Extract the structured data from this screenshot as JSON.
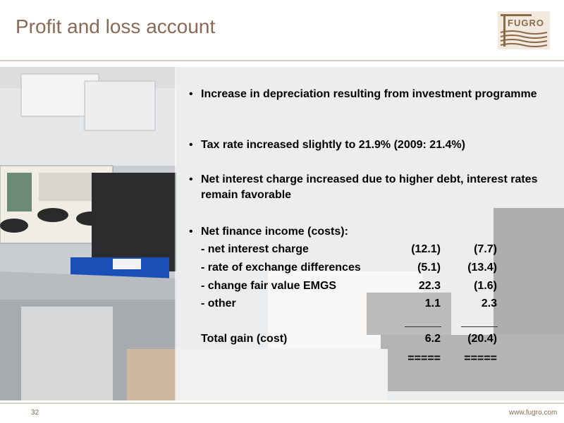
{
  "header": {
    "title": "Profit and loss account",
    "logo_text": "FUGRO"
  },
  "bullets": [
    {
      "text": "Increase in depreciation resulting from investment programme"
    },
    {
      "text": "Tax rate increased slightly to 21.9% (2009: 21.4%)"
    },
    {
      "text": "Net interest charge increased due to higher debt, interest rates remain favorable"
    },
    {
      "text": "Net finance income (costs):"
    }
  ],
  "finance_table": {
    "rows": [
      {
        "label": "- net interest charge",
        "v1": "(12.1)",
        "v2": "(7.7)"
      },
      {
        "label": "- rate of exchange differences",
        "v1": "(5.1)",
        "v2": "(13.4)"
      },
      {
        "label": "- change fair value EMGS",
        "v1": "22.3",
        "v2": "(1.6)"
      },
      {
        "label": "- other",
        "v1": "1.1",
        "v2": "2.3"
      }
    ],
    "total": {
      "label": "Total gain (cost)",
      "v1": "6.2",
      "v2": "(20.4)"
    },
    "double_rule": "====="
  },
  "footer": {
    "page_number": "32",
    "website": "www.fugro.com"
  },
  "colors": {
    "accent": "#8a6a55",
    "logo": "#8b6a48",
    "rule": "#d9cfc5"
  }
}
